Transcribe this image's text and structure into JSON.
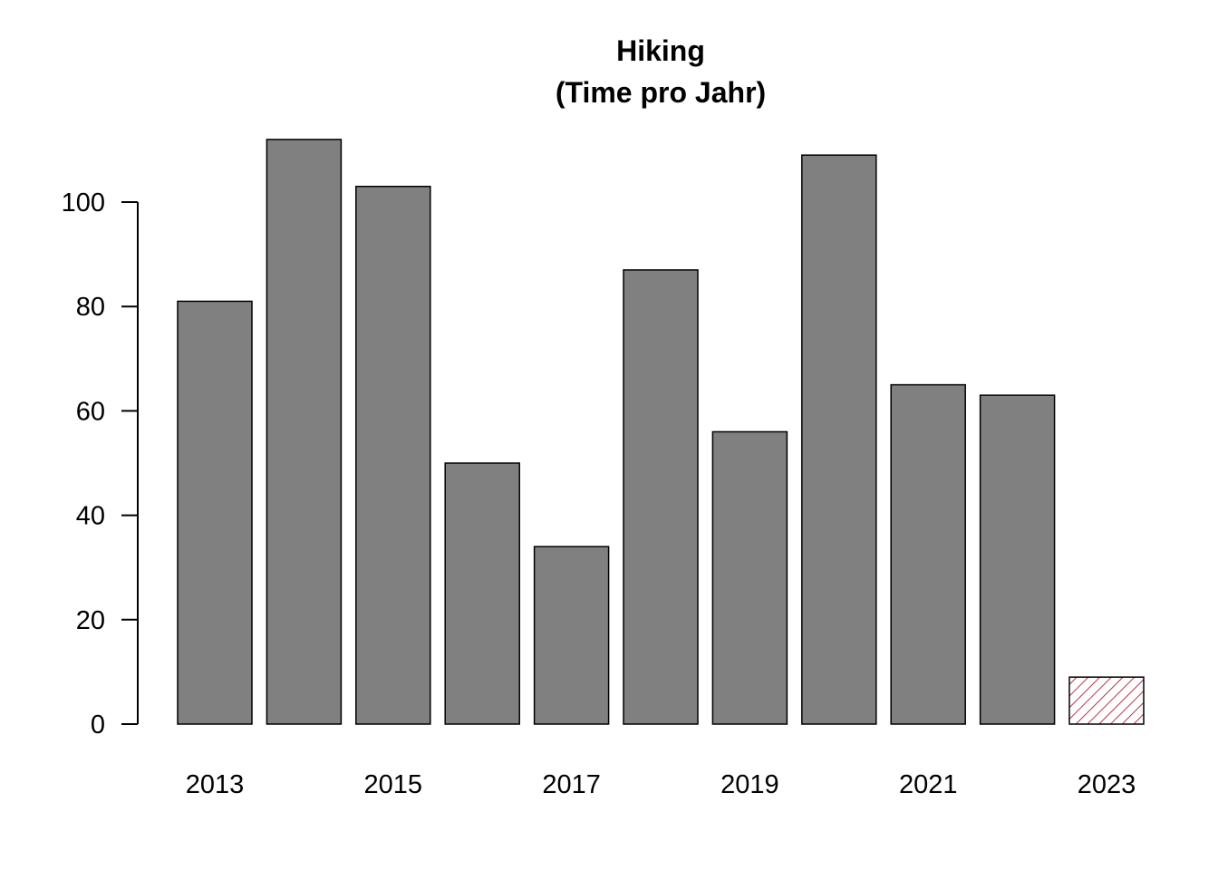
{
  "chart_data": {
    "type": "bar",
    "title": "Hiking",
    "subtitle": "(Time pro Jahr)",
    "xlabel": "",
    "ylabel": "",
    "categories": [
      "2013",
      "2014",
      "2015",
      "2016",
      "2017",
      "2018",
      "2019",
      "2020",
      "2021",
      "2022",
      "2023"
    ],
    "values": [
      81,
      112,
      103,
      50,
      34,
      87,
      56,
      109,
      65,
      63,
      9
    ],
    "x_tick_labels_shown": [
      "2013",
      "2015",
      "2017",
      "2019",
      "2021",
      "2023"
    ],
    "y_ticks": [
      0,
      20,
      40,
      60,
      80,
      100
    ],
    "ylim": [
      0,
      112
    ],
    "grid": false,
    "bar_color": "#808080",
    "highlight_category": "2023",
    "highlight_color": "#b5354a",
    "highlight_pattern": "hatched"
  }
}
